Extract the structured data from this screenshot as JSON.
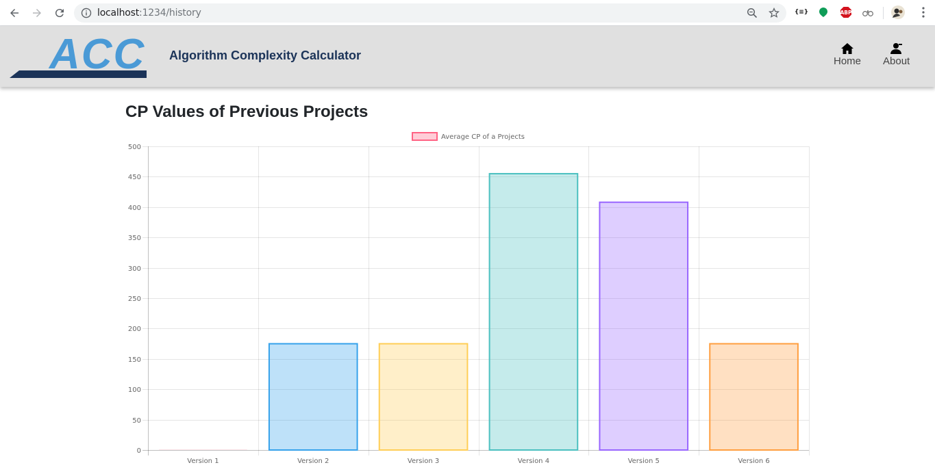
{
  "browser": {
    "url_host": "localhost",
    "url_path": ":1234/history",
    "icons": [
      "back-icon",
      "forward-icon",
      "reload-icon",
      "site-info-icon",
      "zoom-icon",
      "bookmark-star-icon",
      "extension-icon",
      "extension-green-icon",
      "adblock-icon",
      "extension-glasses-icon",
      "profile-avatar",
      "menu-icon"
    ],
    "adblock_label": "ABP",
    "ext_label": "{≡}"
  },
  "header": {
    "logo_text": "ACC",
    "title": "Algorithm Complexity Calculator",
    "nav": [
      {
        "label": "Home",
        "icon": "home-icon"
      },
      {
        "label": "About",
        "icon": "user-icon"
      }
    ]
  },
  "main": {
    "title": "CP Values of Previous Projects"
  },
  "chart_data": {
    "type": "bar",
    "categories": [
      "Version 1",
      "Version 2",
      "Version 3",
      "Version 4",
      "Version 5",
      "Version 6"
    ],
    "series": [
      {
        "name": "Average CP of a Projects",
        "values": [
          0,
          175,
          175,
          455,
          408,
          175
        ],
        "colors": [
          "#ff6384",
          "#36a2eb",
          "#ffce56",
          "#4bc0c0",
          "#9966ff",
          "#ff9f40"
        ]
      }
    ],
    "ylim": [
      0,
      500
    ],
    "yticks": [
      0,
      50,
      100,
      150,
      200,
      250,
      300,
      350,
      400,
      450,
      500
    ],
    "grid": true,
    "legend": "top-center",
    "legend_color": "#ff6384"
  }
}
